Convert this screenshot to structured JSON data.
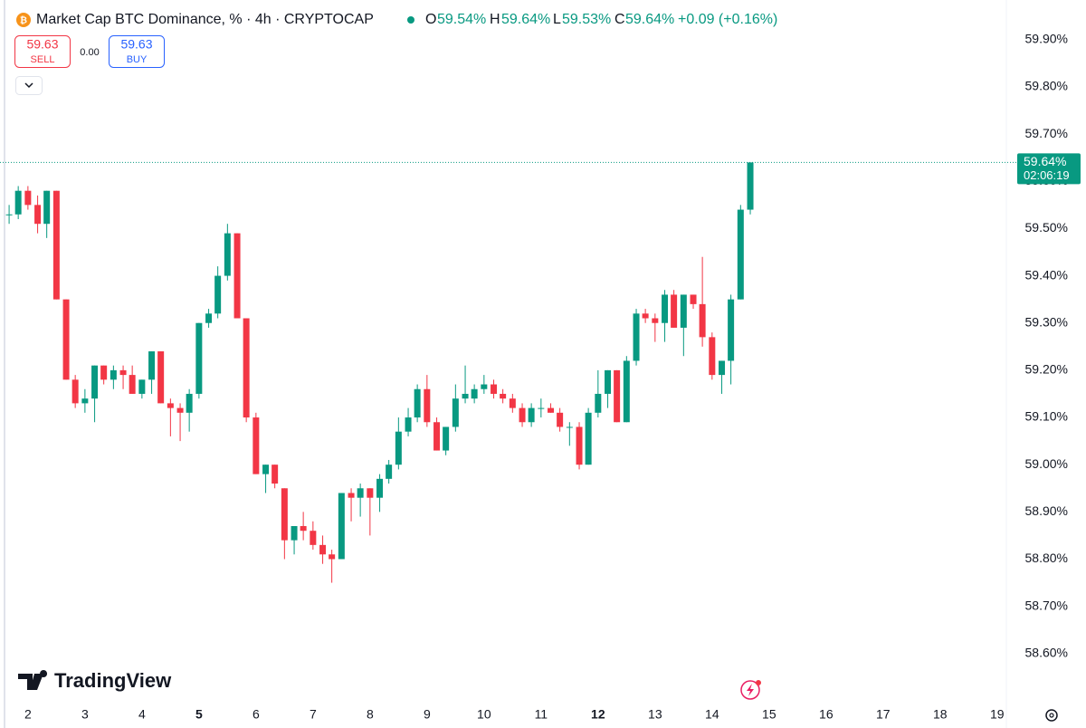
{
  "header": {
    "title": "Market Cap BTC Dominance, % · 4h · CRYPTOCAP",
    "o_label": "O",
    "o": "59.54%",
    "h_label": "H",
    "h": "59.64%",
    "l_label": "L",
    "l": "59.53%",
    "c_label": "C",
    "c": "59.64%",
    "change": "+0.09 (+0.16%)"
  },
  "trade": {
    "sell_price": "59.63",
    "sell": "SELL",
    "spread": "0.00",
    "buy_price": "59.63",
    "buy": "BUY"
  },
  "logo": "TradingView",
  "chart_data": {
    "type": "candlestick",
    "up_color": "#089981",
    "down_color": "#f23645",
    "x": [
      1.67,
      1.83,
      2,
      2.17,
      2.33,
      2.5,
      2.67,
      2.83,
      3,
      3.17,
      3.33,
      3.5,
      3.67,
      3.83,
      4,
      4.17,
      4.33,
      4.5,
      4.67,
      4.83,
      5,
      5.17,
      5.33,
      5.5,
      5.67,
      5.83,
      6,
      6.17,
      6.33,
      6.5,
      6.67,
      6.83,
      7,
      7.17,
      7.33,
      7.5,
      7.67,
      7.83,
      8,
      8.17,
      8.33,
      8.5,
      8.67,
      8.83,
      9,
      9.17,
      9.33,
      9.5,
      9.67,
      9.83,
      10,
      10.17,
      10.33,
      10.5,
      10.67,
      10.83,
      11,
      11.17,
      11.33,
      11.5,
      11.67,
      11.83,
      12,
      12.17,
      12.33,
      12.5,
      12.67,
      12.83,
      13,
      13.17,
      13.33,
      13.5,
      13.67,
      13.83,
      14,
      14.17,
      14.33,
      14.5,
      14.67
    ],
    "open": [
      59.53,
      59.53,
      59.58,
      59.55,
      59.51,
      59.58,
      59.35,
      59.18,
      59.13,
      59.14,
      59.21,
      59.18,
      59.2,
      59.19,
      59.15,
      59.18,
      59.24,
      59.13,
      59.12,
      59.11,
      59.15,
      59.3,
      59.32,
      59.4,
      59.49,
      59.31,
      59.1,
      58.98,
      59.0,
      58.95,
      58.84,
      58.87,
      58.86,
      58.83,
      58.81,
      58.8,
      58.94,
      58.93,
      58.95,
      58.93,
      58.97,
      59.0,
      59.07,
      59.1,
      59.16,
      59.09,
      59.03,
      59.08,
      59.14,
      59.14,
      59.16,
      59.17,
      59.15,
      59.14,
      59.12,
      59.09,
      59.12,
      59.12,
      59.11,
      59.08,
      59.08,
      59.0,
      59.11,
      59.15,
      59.2,
      59.09,
      59.22,
      59.32,
      59.31,
      59.3,
      59.36,
      59.29,
      59.36,
      59.34,
      59.27,
      59.19,
      59.22,
      59.35,
      59.54
    ],
    "high": [
      59.55,
      59.59,
      59.59,
      59.57,
      59.58,
      59.58,
      59.35,
      59.19,
      59.16,
      59.21,
      59.21,
      59.21,
      59.21,
      59.21,
      59.18,
      59.24,
      59.24,
      59.14,
      59.13,
      59.16,
      59.3,
      59.33,
      59.42,
      59.51,
      59.49,
      59.31,
      59.11,
      59.0,
      59.0,
      58.95,
      58.87,
      58.9,
      58.88,
      58.85,
      58.82,
      58.94,
      58.95,
      58.96,
      58.95,
      58.98,
      59.01,
      59.1,
      59.12,
      59.17,
      59.19,
      59.1,
      59.08,
      59.17,
      59.21,
      59.17,
      59.19,
      59.18,
      59.16,
      59.15,
      59.13,
      59.13,
      59.14,
      59.13,
      59.12,
      59.09,
      59.09,
      59.12,
      59.2,
      59.2,
      59.2,
      59.23,
      59.33,
      59.33,
      59.32,
      59.37,
      59.37,
      59.36,
      59.36,
      59.44,
      59.28,
      59.22,
      59.36,
      59.55,
      59.64
    ],
    "low": [
      59.51,
      59.52,
      59.54,
      59.49,
      59.48,
      59.35,
      59.18,
      59.12,
      59.11,
      59.09,
      59.17,
      59.16,
      59.16,
      59.15,
      59.14,
      59.15,
      59.13,
      59.06,
      59.05,
      59.07,
      59.14,
      59.29,
      59.31,
      59.39,
      59.31,
      59.09,
      58.98,
      58.94,
      58.95,
      58.8,
      58.81,
      58.84,
      58.82,
      58.79,
      58.75,
      58.8,
      58.88,
      58.89,
      58.85,
      58.9,
      58.96,
      58.99,
      59.06,
      59.09,
      59.08,
      59.03,
      59.02,
      59.07,
      59.13,
      59.13,
      59.15,
      59.14,
      59.13,
      59.11,
      59.08,
      59.08,
      59.1,
      59.11,
      59.07,
      59.04,
      58.99,
      59.0,
      59.1,
      59.12,
      59.09,
      59.09,
      59.21,
      59.3,
      59.26,
      59.26,
      59.29,
      59.23,
      59.33,
      59.25,
      59.18,
      59.15,
      59.17,
      59.35,
      59.53
    ],
    "close": [
      59.53,
      59.58,
      59.55,
      59.51,
      59.58,
      59.35,
      59.18,
      59.13,
      59.14,
      59.21,
      59.18,
      59.2,
      59.19,
      59.15,
      59.18,
      59.24,
      59.13,
      59.12,
      59.11,
      59.15,
      59.3,
      59.32,
      59.4,
      59.49,
      59.31,
      59.1,
      58.98,
      59.0,
      58.96,
      58.84,
      58.87,
      58.86,
      58.83,
      58.81,
      58.8,
      58.94,
      58.93,
      58.95,
      58.93,
      58.97,
      59.0,
      59.07,
      59.1,
      59.16,
      59.09,
      59.03,
      59.08,
      59.14,
      59.15,
      59.16,
      59.17,
      59.15,
      59.14,
      59.12,
      59.09,
      59.12,
      59.12,
      59.11,
      59.08,
      59.08,
      59.0,
      59.11,
      59.15,
      59.2,
      59.09,
      59.22,
      59.32,
      59.31,
      59.3,
      59.36,
      59.29,
      59.36,
      59.34,
      59.27,
      59.19,
      59.22,
      59.35,
      59.54,
      59.64
    ],
    "xlim": [
      1.51,
      19.13
    ],
    "xticks": [
      2,
      3,
      4,
      5,
      6,
      7,
      8,
      9,
      10,
      11,
      12,
      13,
      14,
      15,
      16,
      17,
      18,
      19
    ],
    "bold_xticks": [
      5,
      12
    ],
    "ylim": [
      58.498,
      59.984
    ],
    "yticks": [
      {
        "value": 58.6,
        "label": "58.60%"
      },
      {
        "value": 58.7,
        "label": "58.70%"
      },
      {
        "value": 58.8,
        "label": "58.80%"
      },
      {
        "value": 58.9,
        "label": "58.90%"
      },
      {
        "value": 59.0,
        "label": "59.00%"
      },
      {
        "value": 59.1,
        "label": "59.10%"
      },
      {
        "value": 59.2,
        "label": "59.20%"
      },
      {
        "value": 59.3,
        "label": "59.30%"
      },
      {
        "value": 59.4,
        "label": "59.40%"
      },
      {
        "value": 59.5,
        "label": "59.50%"
      },
      {
        "value": 59.6,
        "label": "59.60%"
      },
      {
        "value": 59.7,
        "label": "59.70%"
      },
      {
        "value": 59.8,
        "label": "59.80%"
      },
      {
        "value": 59.9,
        "label": "59.90%"
      }
    ],
    "grid": false,
    "last_price": {
      "value": 59.64,
      "label": "59.64%",
      "countdown": "02:06:19"
    }
  }
}
